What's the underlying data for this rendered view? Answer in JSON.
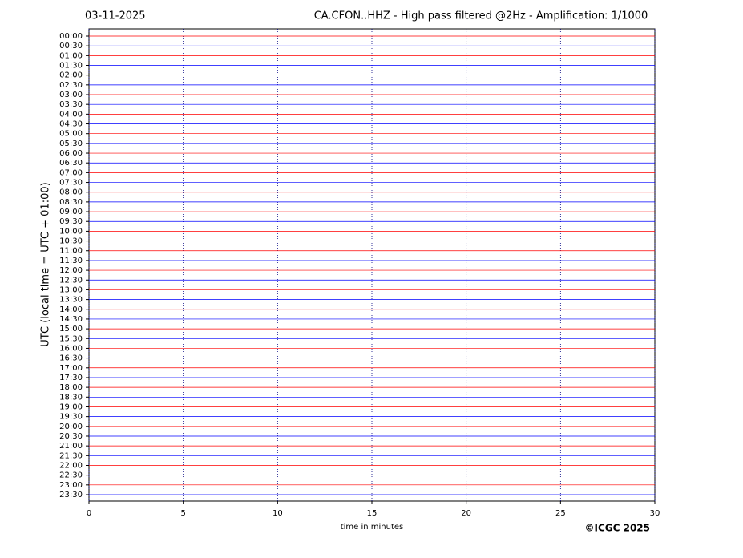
{
  "chart_data": {
    "type": "helicorder",
    "date": "03-11-2025",
    "title": "CA.CFON..HHZ - High pass filtered @2Hz - Amplification: 1/1000",
    "xlabel": "time in minutes",
    "ylabel": "UTC (local time = UTC + 01:00)",
    "xlim": [
      0,
      30
    ],
    "xticks": [
      0,
      5,
      10,
      15,
      20,
      25,
      30
    ],
    "categories": [
      "00:00",
      "00:30",
      "01:00",
      "01:30",
      "02:00",
      "02:30",
      "03:00",
      "03:30",
      "04:00",
      "04:30",
      "05:00",
      "05:30",
      "06:00",
      "06:30",
      "07:00",
      "07:30",
      "08:00",
      "08:30",
      "09:00",
      "09:30",
      "10:00",
      "10:30",
      "11:00",
      "11:30",
      "12:00",
      "12:30",
      "13:00",
      "13:30",
      "14:00",
      "14:30",
      "15:00",
      "15:30",
      "16:00",
      "16:30",
      "17:00",
      "17:30",
      "18:00",
      "18:30",
      "19:00",
      "19:30",
      "20:00",
      "20:30",
      "21:00",
      "21:30",
      "22:00",
      "22:30",
      "23:00",
      "23:30"
    ],
    "colors": [
      "#ff0000",
      "#0000ff"
    ],
    "grid": true
  },
  "footer": {
    "copyright": "©ICGC 2025"
  }
}
